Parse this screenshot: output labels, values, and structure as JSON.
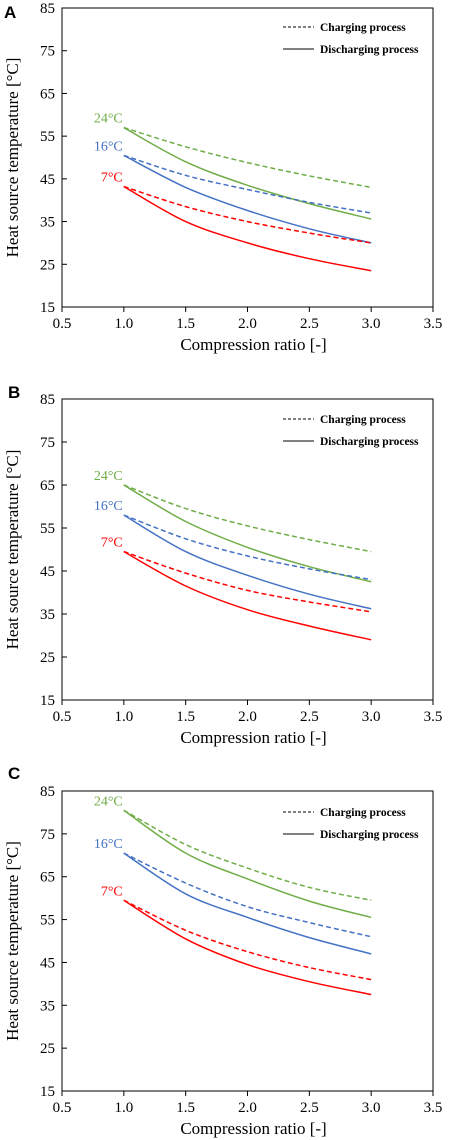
{
  "colors": {
    "green": "#70ad47",
    "blue": "#4472c4",
    "red": "#ff0000",
    "axis": "#000000"
  },
  "chart_data": [
    {
      "panel": "A",
      "type": "line",
      "xlabel": "Compression ratio [-]",
      "ylabel": "Heat source temperature [°C]",
      "xlim": [
        0.5,
        3.5
      ],
      "ylim": [
        15,
        85
      ],
      "xticks": [
        "0.5",
        "1.0",
        "1.5",
        "2.0",
        "2.5",
        "3.0",
        "3.5"
      ],
      "yticks": [
        "15",
        "25",
        "35",
        "45",
        "55",
        "65",
        "75",
        "85"
      ],
      "grid": false,
      "legend": {
        "position": "top-right",
        "entries": [
          {
            "label": "Charging process",
            "style": "dashed"
          },
          {
            "label": "Discharging process",
            "style": "solid"
          }
        ]
      },
      "x": [
        1.0,
        1.5,
        2.0,
        2.5,
        3.0
      ],
      "series": [
        {
          "name": "24°C",
          "process": "charging",
          "color": "green",
          "style": "dashed",
          "values": [
            57.0,
            52.5,
            48.8,
            45.7,
            43.0
          ]
        },
        {
          "name": "24°C",
          "process": "discharging",
          "color": "green",
          "style": "solid",
          "values": [
            57.0,
            49.0,
            43.5,
            39.2,
            35.6
          ]
        },
        {
          "name": "16°C",
          "process": "charging",
          "color": "blue",
          "style": "dashed",
          "values": [
            50.5,
            45.8,
            42.5,
            39.5,
            37.0
          ]
        },
        {
          "name": "16°C",
          "process": "discharging",
          "color": "blue",
          "style": "solid",
          "values": [
            50.5,
            43.0,
            37.6,
            33.3,
            30.0
          ]
        },
        {
          "name": "7°C",
          "process": "charging",
          "color": "red",
          "style": "dashed",
          "values": [
            43.2,
            38.5,
            35.0,
            32.3,
            30.0
          ]
        },
        {
          "name": "7°C",
          "process": "discharging",
          "color": "red",
          "style": "solid",
          "values": [
            43.2,
            35.0,
            30.0,
            26.3,
            23.5
          ]
        }
      ]
    },
    {
      "panel": "B",
      "type": "line",
      "xlabel": "Compression ratio [-]",
      "ylabel": "Heat source temperature [°C]",
      "xlim": [
        0.5,
        3.5
      ],
      "ylim": [
        15,
        85
      ],
      "xticks": [
        "0.5",
        "1.0",
        "1.5",
        "2.0",
        "2.5",
        "3.0",
        "3.5"
      ],
      "yticks": [
        "15",
        "25",
        "35",
        "45",
        "55",
        "65",
        "75",
        "85"
      ],
      "grid": false,
      "legend": {
        "position": "top-right",
        "entries": [
          {
            "label": "Charging process",
            "style": "dashed"
          },
          {
            "label": "Discharging process",
            "style": "solid"
          }
        ]
      },
      "x": [
        1.0,
        1.5,
        2.0,
        2.5,
        3.0
      ],
      "series": [
        {
          "name": "24°C",
          "process": "charging",
          "color": "green",
          "style": "dashed",
          "values": [
            65.0,
            59.5,
            55.5,
            52.3,
            49.5
          ]
        },
        {
          "name": "24°C",
          "process": "discharging",
          "color": "green",
          "style": "solid",
          "values": [
            65.0,
            56.5,
            50.5,
            46.0,
            42.5
          ]
        },
        {
          "name": "16°C",
          "process": "charging",
          "color": "blue",
          "style": "dashed",
          "values": [
            58.0,
            52.5,
            48.5,
            45.5,
            43.0
          ]
        },
        {
          "name": "16°C",
          "process": "discharging",
          "color": "blue",
          "style": "solid",
          "values": [
            58.0,
            49.5,
            44.0,
            39.6,
            36.2
          ]
        },
        {
          "name": "7°C",
          "process": "charging",
          "color": "red",
          "style": "dashed",
          "values": [
            49.5,
            44.5,
            40.5,
            37.8,
            35.5
          ]
        },
        {
          "name": "7°C",
          "process": "discharging",
          "color": "red",
          "style": "solid",
          "values": [
            49.5,
            41.5,
            36.0,
            32.2,
            29.0
          ]
        }
      ]
    },
    {
      "panel": "C",
      "type": "line",
      "xlabel": "Compression ratio [-]",
      "ylabel": "Heat source temperature [°C]",
      "xlim": [
        0.5,
        3.5
      ],
      "ylim": [
        15,
        85
      ],
      "xticks": [
        "0.5",
        "1.0",
        "1.5",
        "2.0",
        "2.5",
        "3.0",
        "3.5"
      ],
      "yticks": [
        "15",
        "25",
        "35",
        "45",
        "55",
        "65",
        "75",
        "85"
      ],
      "grid": false,
      "legend": {
        "position": "top-right",
        "entries": [
          {
            "label": "Charging process",
            "style": "dashed"
          },
          {
            "label": "Discharging process",
            "style": "solid"
          }
        ]
      },
      "x": [
        1.0,
        1.5,
        2.0,
        2.5,
        3.0
      ],
      "series": [
        {
          "name": "24°C",
          "process": "charging",
          "color": "green",
          "style": "dashed",
          "values": [
            80.5,
            72.5,
            67.0,
            62.5,
            59.5
          ]
        },
        {
          "name": "24°C",
          "process": "discharging",
          "color": "green",
          "style": "solid",
          "values": [
            80.5,
            70.5,
            64.5,
            59.3,
            55.5
          ]
        },
        {
          "name": "16°C",
          "process": "charging",
          "color": "blue",
          "style": "dashed",
          "values": [
            70.5,
            63.5,
            58.0,
            54.3,
            51.0
          ]
        },
        {
          "name": "16°C",
          "process": "discharging",
          "color": "blue",
          "style": "solid",
          "values": [
            70.5,
            61.0,
            55.5,
            50.8,
            47.0
          ]
        },
        {
          "name": "7°C",
          "process": "charging",
          "color": "red",
          "style": "dashed",
          "values": [
            59.5,
            52.5,
            47.5,
            43.8,
            41.0
          ]
        },
        {
          "name": "7°C",
          "process": "discharging",
          "color": "red",
          "style": "solid",
          "values": [
            59.5,
            50.5,
            44.5,
            40.5,
            37.5
          ]
        }
      ]
    }
  ]
}
